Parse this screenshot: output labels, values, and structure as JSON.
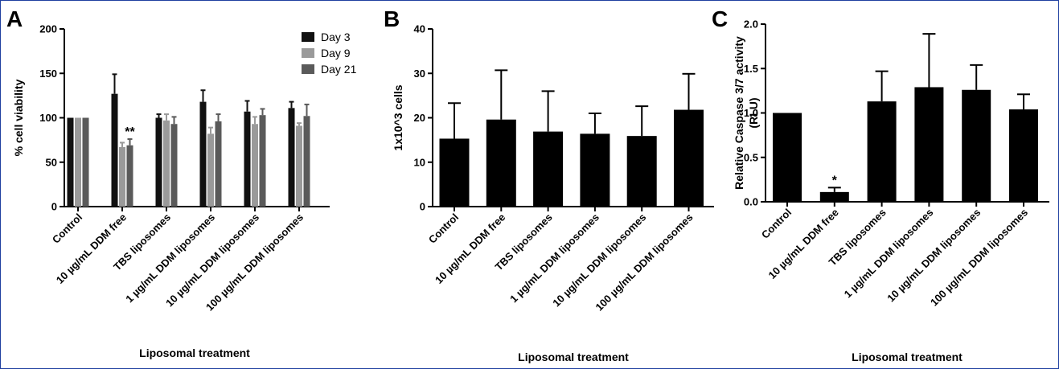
{
  "chart_data": [
    {
      "panel": "A",
      "type": "bar",
      "categories": [
        "Control",
        "10 µg/mL DDM free",
        "TBS liposomes",
        "1 µg/mL DDM liposomes",
        "10 µg/mL DDM liposomes",
        "100 µg/mL DDM liposomes"
      ],
      "series": [
        {
          "name": "Day 3",
          "color": "#111111",
          "values": [
            100,
            127,
            100,
            118,
            107,
            111
          ],
          "errors": [
            0,
            22,
            4,
            13,
            12,
            7
          ]
        },
        {
          "name": "Day 9",
          "color": "#9a9a9a",
          "values": [
            100,
            67,
            97,
            82,
            93,
            91
          ],
          "errors": [
            0,
            5,
            7,
            7,
            8,
            3
          ]
        },
        {
          "name": "Day 21",
          "color": "#5a5a5a",
          "values": [
            100,
            69,
            93,
            96,
            103,
            102
          ],
          "errors": [
            0,
            7,
            8,
            8,
            7,
            13
          ]
        }
      ],
      "annotations": [
        {
          "text": "**",
          "category": 1,
          "series": 2
        }
      ],
      "xlabel": "Liposomal treatment",
      "ylabel": "% cell viability",
      "ylim": [
        0,
        200
      ],
      "yticks": [
        0,
        50,
        100,
        150,
        200
      ],
      "legend": "top-right"
    },
    {
      "panel": "B",
      "type": "bar",
      "categories": [
        "Control",
        "10 µg/mL DDM free",
        "TBS liposomes",
        "1 µg/mL DDM liposomes",
        "10 µg/mL DDM liposomes",
        "100 µg/mL DDM liposomes"
      ],
      "series": [
        {
          "color": "#000000",
          "values": [
            15.3,
            19.6,
            16.9,
            16.4,
            15.9,
            21.8
          ],
          "errors": [
            8.0,
            11.1,
            9.1,
            4.6,
            6.7,
            8.1
          ]
        }
      ],
      "xlabel": "Liposomal treatment",
      "ylabel": "1x10^3 cells",
      "ylim": [
        0,
        40
      ],
      "yticks": [
        0,
        10,
        20,
        30,
        40
      ]
    },
    {
      "panel": "C",
      "type": "bar",
      "categories": [
        "Control",
        "10 µg/mL DDM free",
        "TBS liposomes",
        "1 µg/mL DDM liposomes",
        "10 µg/mL DDM liposomes",
        "100 µg/mL DDM liposomes"
      ],
      "series": [
        {
          "color": "#000000",
          "values": [
            1.0,
            0.11,
            1.13,
            1.29,
            1.26,
            1.04
          ],
          "errors": [
            0,
            0.05,
            0.34,
            0.6,
            0.28,
            0.17
          ]
        }
      ],
      "annotations": [
        {
          "text": "*",
          "category": 1,
          "series": 0
        }
      ],
      "xlabel": "Liposomal treatment",
      "ylabel": "Relative Caspase 3/7 activity",
      "ylabel2": "(RLU)",
      "ylim": [
        0,
        2.0
      ],
      "yticks": [
        "0.0",
        "0.5",
        "1.0",
        "1.5",
        "2.0"
      ]
    }
  ]
}
